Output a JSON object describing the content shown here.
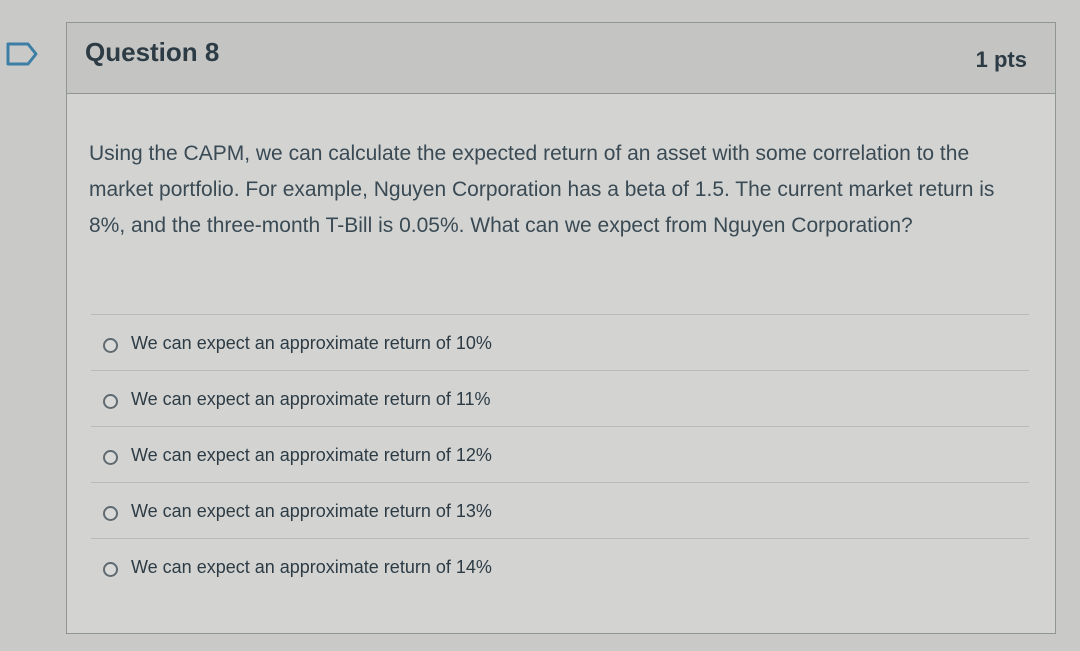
{
  "question": {
    "title": "Question 8",
    "points": "1 pts",
    "body": "Using the CAPM, we can calculate the expected return of an asset with some correlation to the market portfolio. For example, Nguyen Corporation has a beta of 1.5. The current market return is 8%, and the three-month T-Bill is 0.05%. What can we expect from Nguyen Corporation?",
    "flag_icon": "bookmark-flag-icon"
  },
  "answers": [
    {
      "label": "We can expect an approximate return of 10%",
      "selected": false
    },
    {
      "label": "We can expect an approximate return of 11%",
      "selected": false
    },
    {
      "label": "We can expect an approximate return of 12%",
      "selected": false
    },
    {
      "label": "We can expect an approximate return of 13%",
      "selected": false
    },
    {
      "label": "We can expect an approximate return of 14%",
      "selected": false
    }
  ],
  "colors": {
    "accent_flag": "#3c7ea6",
    "text": "#2d3b45"
  }
}
